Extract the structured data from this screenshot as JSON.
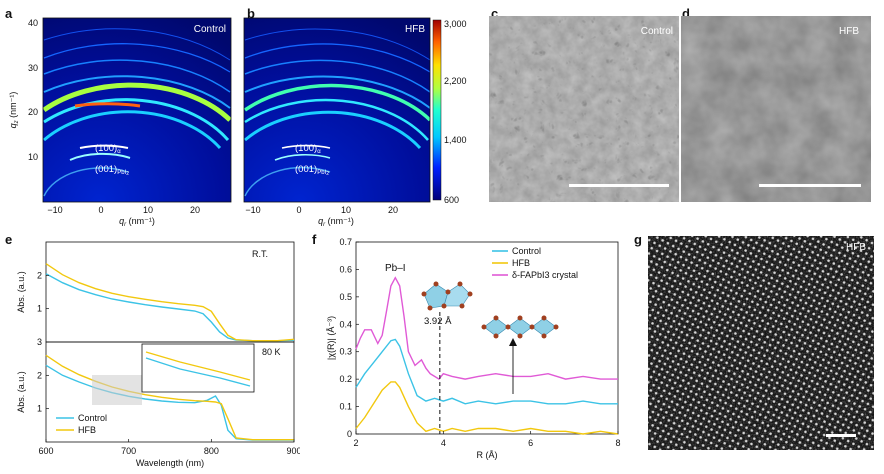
{
  "panels": {
    "a": {
      "label": "a",
      "tag": "Control",
      "peak_major": "(100)",
      "peak_major_sub": "α",
      "peak_minor": "(001)",
      "peak_minor_sub": "PbI",
      "peak_minor_sub2": "2"
    },
    "b": {
      "label": "b",
      "tag": "HFB",
      "peak_major": "(100)",
      "peak_major_sub": "α",
      "peak_minor": "(001)",
      "peak_minor_sub": "PbI",
      "peak_minor_sub2": "2"
    },
    "c": {
      "label": "c",
      "tag": "Control"
    },
    "d": {
      "label": "d",
      "tag": "HFB"
    },
    "e": {
      "label": "e",
      "top_note": "R.T.",
      "bottom_note": "80 K"
    },
    "f": {
      "label": "f",
      "peak_label": "Pb–I",
      "distance_label": "3.92 Å"
    },
    "g": {
      "label": "g",
      "tag": "HFB"
    }
  },
  "giwaxs_axes": {
    "ylabel_q": "q",
    "ylabel_sub": "z",
    "ylabel_unit": " (nm⁻¹)",
    "xlabel_q": "q",
    "xlabel_sub": "r",
    "xlabel_unit": " (nm⁻¹)",
    "yticks": [
      "40",
      "30",
      "20",
      "10"
    ],
    "xticks": [
      "−10",
      "0",
      "10",
      "20"
    ]
  },
  "colorbar": {
    "ticks": [
      "3,000",
      "2,200",
      "1,400",
      "600"
    ]
  },
  "chart_data": [
    {
      "type": "line",
      "id": "e-top",
      "ylabel": "Abs. (a.u.)",
      "xlim": [
        600,
        900
      ],
      "ylim": [
        0,
        3
      ],
      "yticks": [
        "1",
        "2"
      ],
      "series": [
        {
          "name": "Control",
          "color": "#3cc3e6",
          "x": [
            600,
            620,
            640,
            660,
            680,
            700,
            720,
            740,
            760,
            780,
            790,
            800,
            810,
            820,
            830,
            850,
            880,
            900
          ],
          "y": [
            2.05,
            1.78,
            1.57,
            1.42,
            1.29,
            1.2,
            1.12,
            1.05,
            0.99,
            0.93,
            0.85,
            0.6,
            0.3,
            0.12,
            0.06,
            0.04,
            0.04,
            0.05
          ]
        },
        {
          "name": "HFB",
          "color": "#f2c80f",
          "x": [
            600,
            620,
            640,
            660,
            680,
            700,
            720,
            740,
            760,
            780,
            790,
            800,
            810,
            820,
            830,
            850,
            880,
            900
          ],
          "y": [
            2.35,
            2.02,
            1.78,
            1.6,
            1.46,
            1.36,
            1.28,
            1.21,
            1.15,
            1.1,
            1.06,
            0.92,
            0.55,
            0.2,
            0.07,
            0.04,
            0.04,
            0.08
          ]
        }
      ]
    },
    {
      "type": "line",
      "id": "e-bottom",
      "ylabel": "Abs. (a.u.)",
      "xlabel": "Wavelength (nm)",
      "xlim": [
        600,
        900
      ],
      "ylim": [
        0,
        3
      ],
      "xticks": [
        "600",
        "700",
        "800",
        "900"
      ],
      "yticks": [
        "1",
        "2",
        "3"
      ],
      "legend": [
        "Control",
        "HFB"
      ],
      "series": [
        {
          "name": "Control",
          "color": "#3cc3e6",
          "x": [
            600,
            620,
            640,
            660,
            680,
            700,
            720,
            740,
            760,
            780,
            795,
            805,
            812,
            820,
            830,
            850,
            880,
            900
          ],
          "y": [
            2.3,
            2.0,
            1.8,
            1.62,
            1.48,
            1.37,
            1.29,
            1.23,
            1.19,
            1.18,
            1.25,
            1.38,
            1.1,
            0.35,
            0.1,
            0.06,
            0.06,
            0.06
          ]
        },
        {
          "name": "HFB",
          "color": "#f2c80f",
          "x": [
            600,
            620,
            640,
            660,
            680,
            700,
            720,
            740,
            760,
            780,
            795,
            805,
            812,
            820,
            830,
            850,
            880,
            900
          ],
          "y": [
            2.6,
            2.27,
            2.02,
            1.82,
            1.65,
            1.52,
            1.42,
            1.34,
            1.28,
            1.24,
            1.22,
            1.2,
            1.15,
            0.7,
            0.12,
            0.07,
            0.07,
            0.07
          ]
        }
      ]
    },
    {
      "type": "line",
      "id": "f",
      "ylabel": "|χ(R)| (Å⁻³)",
      "xlabel": "R (Å)",
      "xlim": [
        2,
        8
      ],
      "ylim": [
        0,
        0.7
      ],
      "xticks": [
        "2",
        "4",
        "6",
        "8"
      ],
      "yticks": [
        "0",
        "0.1",
        "0.2",
        "0.3",
        "0.4",
        "0.5",
        "0.6",
        "0.7"
      ],
      "legend": [
        "Control",
        "HFB",
        "δ-FAPbI3 crystal"
      ],
      "series": [
        {
          "name": "Control",
          "color": "#3cc3e6",
          "x": [
            2.0,
            2.2,
            2.4,
            2.6,
            2.8,
            2.9,
            3.0,
            3.2,
            3.4,
            3.6,
            3.8,
            4.0,
            4.2,
            4.5,
            4.8,
            5.2,
            5.6,
            6.0,
            6.4,
            6.8,
            7.2,
            7.6,
            8.0
          ],
          "y": [
            0.17,
            0.22,
            0.26,
            0.3,
            0.34,
            0.345,
            0.32,
            0.22,
            0.14,
            0.12,
            0.13,
            0.12,
            0.13,
            0.11,
            0.12,
            0.11,
            0.12,
            0.12,
            0.11,
            0.11,
            0.12,
            0.11,
            0.11
          ]
        },
        {
          "name": "HFB",
          "color": "#f2c80f",
          "x": [
            2.0,
            2.2,
            2.4,
            2.6,
            2.8,
            2.9,
            3.0,
            3.2,
            3.4,
            3.6,
            3.8,
            4.0,
            4.2,
            4.5,
            4.8,
            5.2,
            5.6,
            6.0,
            6.4,
            6.8,
            7.2,
            7.6,
            8.0
          ],
          "y": [
            0.02,
            0.06,
            0.11,
            0.16,
            0.19,
            0.19,
            0.17,
            0.1,
            0.04,
            0.01,
            0.02,
            0.01,
            0.02,
            0.01,
            0.02,
            0.02,
            0.01,
            0.02,
            0.01,
            0.01,
            0.0,
            0.01,
            0.0
          ]
        },
        {
          "name": "δ-FAPbI3 crystal",
          "color": "#e05ad6",
          "x": [
            2.0,
            2.1,
            2.2,
            2.35,
            2.5,
            2.6,
            2.7,
            2.8,
            2.9,
            3.0,
            3.1,
            3.2,
            3.35,
            3.5,
            3.6,
            3.7,
            3.8,
            3.9,
            4.0,
            4.2,
            4.5,
            4.8,
            5.2,
            5.6,
            6.0,
            6.4,
            6.8,
            7.2,
            7.6,
            8.0
          ],
          "y": [
            0.31,
            0.35,
            0.38,
            0.38,
            0.33,
            0.36,
            0.45,
            0.54,
            0.57,
            0.54,
            0.43,
            0.3,
            0.25,
            0.27,
            0.24,
            0.22,
            0.21,
            0.2,
            0.22,
            0.21,
            0.2,
            0.21,
            0.22,
            0.21,
            0.21,
            0.22,
            0.2,
            0.21,
            0.2,
            0.2
          ]
        }
      ]
    }
  ],
  "colors": {
    "control": "#3cc3e6",
    "hfb": "#f2c80f",
    "delta": "#e05ad6",
    "giwaxs_bg": "#000a8a"
  }
}
